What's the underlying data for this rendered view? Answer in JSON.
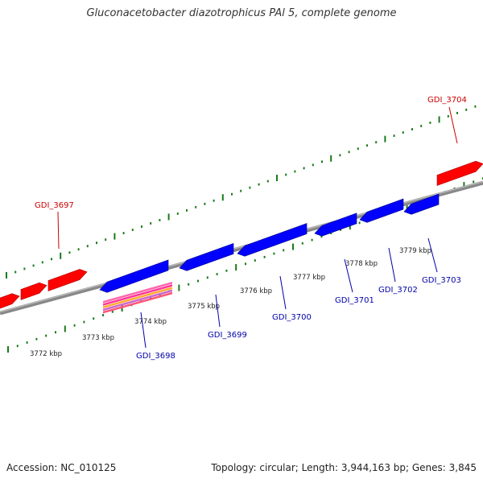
{
  "title": "Gluconacetobacter diazotrophicus PAl 5, complete genome",
  "footer": {
    "accession": "Accession: NC_010125",
    "summary": "Topology: circular; Length: 3,944,163 bp; Genes: 3,845"
  },
  "colors": {
    "forward_gene": "#ff0000",
    "reverse_gene": "#0000ff",
    "backbone": "#888888",
    "ticks": "#1a7a1a",
    "label_forward": "#cc0000",
    "label_reverse": "#0000aa",
    "rna_stripes": [
      "#ff66aa",
      "#ff3399",
      "#ffaa33",
      "#cc66cc",
      "#ff5577"
    ]
  },
  "scale_labels": [
    "3772 kbp",
    "3773 kbp",
    "3774 kbp",
    "3775 kbp",
    "3776 kbp",
    "3777 kbp",
    "3778 kbp",
    "3779 kbp"
  ],
  "genes": [
    {
      "name": "GDI_3697",
      "strand": "+"
    },
    {
      "name": "GDI_3698",
      "strand": "-"
    },
    {
      "name": "GDI_3699",
      "strand": "-"
    },
    {
      "name": "GDI_3700",
      "strand": "-"
    },
    {
      "name": "GDI_3701",
      "strand": "-"
    },
    {
      "name": "GDI_3702",
      "strand": "-"
    },
    {
      "name": "GDI_3703",
      "strand": "-"
    },
    {
      "name": "GDI_3704",
      "strand": "+"
    }
  ]
}
